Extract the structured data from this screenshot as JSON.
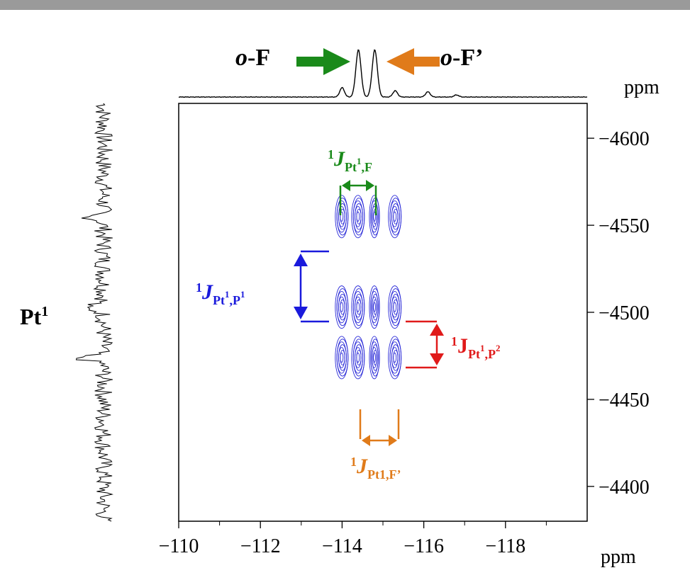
{
  "chart_data": {
    "type": "contour",
    "x_axis": {
      "range": [
        -110,
        -120
      ],
      "ticks": [
        -110,
        -112,
        -114,
        -116,
        -118
      ],
      "tick_labels": [
        "−110",
        "−112",
        "−114",
        "−116",
        "−118"
      ],
      "unit": "ppm"
    },
    "y_axis": {
      "range": [
        -4620,
        -4380
      ],
      "ticks": [
        -4600,
        -4550,
        -4500,
        -4450,
        -4400
      ],
      "tick_labels": [
        "−4600",
        "−4550",
        "−4500",
        "−4450",
        "−4400"
      ],
      "unit": "ppm",
      "side": "right"
    },
    "top_projection": {
      "peaks": [
        {
          "x": -114.0,
          "height": 0.18
        },
        {
          "x": -114.4,
          "height": 0.9
        },
        {
          "x": -114.8,
          "height": 0.9
        },
        {
          "x": -115.3,
          "height": 0.12
        },
        {
          "x": -116.1,
          "height": 0.1
        },
        {
          "x": -116.8,
          "height": 0.04
        }
      ]
    },
    "left_projection": {
      "label_main": "Pt",
      "label_sup": "1"
    },
    "cross_peaks": {
      "x": [
        -114.0,
        -114.4,
        -114.8,
        -115.3
      ],
      "y": [
        -4555,
        -4503,
        -4474
      ]
    },
    "annotations": {
      "oF": {
        "text_italic": "o",
        "text_rest": "-F",
        "color": "#1a8a1a"
      },
      "oFp": {
        "text_italic": "o",
        "text_rest": "-F’",
        "color": "#e07b1a"
      },
      "j_pt_f": {
        "pre": "1",
        "main": "J",
        "sub": "Pt",
        "subsup": "1",
        "subrest": ",F",
        "color": "#1a8a1a"
      },
      "j_pt_p1": {
        "pre": "1",
        "main": "J",
        "sub": "Pt",
        "subsup": "1",
        "subrest": ",P",
        "subsup2": "1",
        "color": "#1a1adc"
      },
      "j_pt_p2": {
        "pre": "1",
        "main": "J",
        "sub": "Pt",
        "subsup": "1",
        "subrest": ",P",
        "subsup2": "2",
        "color": "#e01a1a"
      },
      "j_pt_fp": {
        "pre": "1",
        "main": "J",
        "sub": "Pt1,F’",
        "color": "#e07b1a"
      }
    },
    "colors": {
      "contour": "#2a2ad8",
      "frame": "#000000"
    }
  }
}
